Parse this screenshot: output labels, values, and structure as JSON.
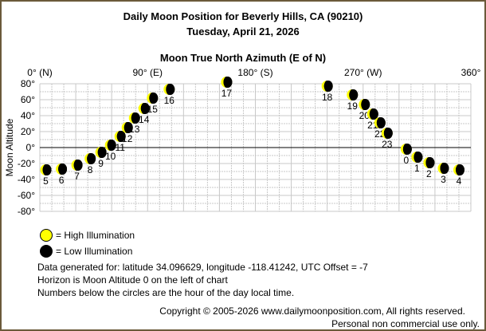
{
  "header": {
    "title": "Daily Moon Position for Beverly Hills, CA (90210)",
    "date": "Tuesday, April 21, 2026"
  },
  "chart_data": {
    "type": "scatter",
    "title": "Moon True North Azimuth (E of N)",
    "xlabel": "Moon True North Azimuth (E of N)",
    "ylabel": "Moon Altitude",
    "xlim": [
      0,
      360
    ],
    "ylim": [
      -80,
      80
    ],
    "x_ticks": [
      {
        "value": 0,
        "label": "0° (N)"
      },
      {
        "value": 90,
        "label": "90° (E)"
      },
      {
        "value": 180,
        "label": "180° (S)"
      },
      {
        "value": 270,
        "label": "270° (W)"
      },
      {
        "value": 360,
        "label": "360°"
      }
    ],
    "y_ticks": [
      {
        "value": 80,
        "label": "80°"
      },
      {
        "value": 60,
        "label": "60°"
      },
      {
        "value": 40,
        "label": "40°"
      },
      {
        "value": 20,
        "label": "20°"
      },
      {
        "value": 0,
        "label": "0°"
      },
      {
        "value": -20,
        "label": "-20°"
      },
      {
        "value": -40,
        "label": "-40°"
      },
      {
        "value": -60,
        "label": "-60°"
      },
      {
        "value": -80,
        "label": "-80°"
      }
    ],
    "grid": true,
    "horizon_line": 0,
    "points": [
      {
        "hour": "5",
        "az": 5,
        "alt": -28
      },
      {
        "hour": "6",
        "az": 18,
        "alt": -27
      },
      {
        "hour": "7",
        "az": 31,
        "alt": -22
      },
      {
        "hour": "8",
        "az": 42,
        "alt": -14
      },
      {
        "hour": "9",
        "az": 51,
        "alt": -6
      },
      {
        "hour": "10",
        "az": 59,
        "alt": 3
      },
      {
        "hour": "11",
        "az": 67,
        "alt": 14
      },
      {
        "hour": "12",
        "az": 73,
        "alt": 25
      },
      {
        "hour": "13",
        "az": 79,
        "alt": 37
      },
      {
        "hour": "14",
        "az": 87,
        "alt": 49
      },
      {
        "hour": "15",
        "az": 94,
        "alt": 62
      },
      {
        "hour": "16",
        "az": 108,
        "alt": 73
      },
      {
        "hour": "17",
        "az": 156,
        "alt": 82
      },
      {
        "hour": "18",
        "az": 240,
        "alt": 77
      },
      {
        "hour": "19",
        "az": 261,
        "alt": 66
      },
      {
        "hour": "20",
        "az": 271,
        "alt": 54
      },
      {
        "hour": "21",
        "az": 278,
        "alt": 42
      },
      {
        "hour": "22",
        "az": 284,
        "alt": 31
      },
      {
        "hour": "23",
        "az": 290,
        "alt": 18
      },
      {
        "hour": "0",
        "az": 306,
        "alt": -2
      },
      {
        "hour": "1",
        "az": 315,
        "alt": -12
      },
      {
        "hour": "2",
        "az": 325,
        "alt": -19
      },
      {
        "hour": "3",
        "az": 337,
        "alt": -26
      },
      {
        "hour": "4",
        "az": 350,
        "alt": -28
      }
    ],
    "colors": {
      "high": "#ffff00",
      "low": "#000000",
      "grid": "#c8c8c8"
    }
  },
  "legend": {
    "high": "= High Illumination",
    "low": "= Low Illumination"
  },
  "notes": [
    "Data generated for: latitude 34.096629, longitude -118.41242, UTC Offset = -7",
    "Horizon is Moon Altitude 0 on the left of chart",
    "Numbers below the circles are the hour of the day local time."
  ],
  "footer": {
    "copyright": "Copyright © 2005-2026 www.dailymoonposition.com, All rights reserved.",
    "usage": "Personal non commercial use only."
  }
}
